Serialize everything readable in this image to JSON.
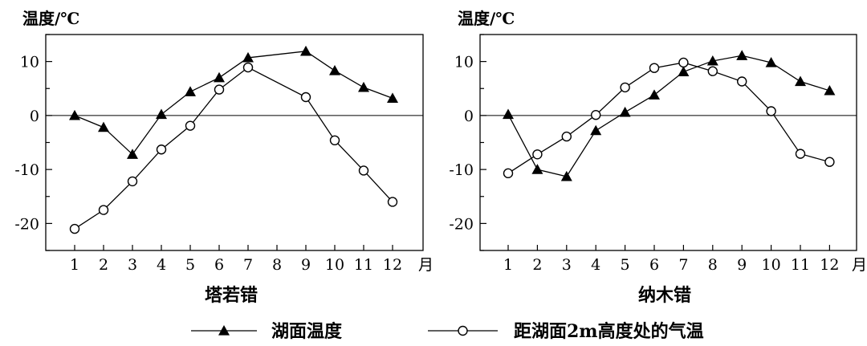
{
  "chart_data": [
    {
      "type": "line",
      "title": "塔若错",
      "ylabel": "温度/℃",
      "xlabel": "月",
      "ylim": [
        -25,
        15
      ],
      "yticks": [
        10,
        0,
        -10,
        -20
      ],
      "categories": [
        "1",
        "2",
        "3",
        "4",
        "5",
        "6",
        "7",
        "8",
        "9",
        "10",
        "11",
        "12"
      ],
      "series": [
        {
          "name": "湖面温度",
          "marker": "filled-triangle",
          "x": [
            1,
            2,
            3,
            4,
            5,
            6,
            7,
            9,
            10,
            11,
            12
          ],
          "values": [
            0,
            -2.2,
            -7.2,
            0.2,
            4.4,
            7,
            10.7,
            11.9,
            8.3,
            5.2,
            3.2
          ]
        },
        {
          "name": "距湖面2m高度处的气温",
          "marker": "open-circle",
          "x": [
            1,
            2,
            3,
            4,
            5,
            6,
            7,
            9,
            10,
            11,
            12
          ],
          "values": [
            -21,
            -17.5,
            -12.2,
            -6.3,
            -1.9,
            4.8,
            8.9,
            3.4,
            -4.6,
            -10.2,
            -16
          ]
        }
      ]
    },
    {
      "type": "line",
      "title": "纳木错",
      "ylabel": "温度/℃",
      "xlabel": "月",
      "ylim": [
        -25,
        15
      ],
      "yticks": [
        10,
        0,
        -10,
        -20
      ],
      "categories": [
        "1",
        "2",
        "3",
        "4",
        "5",
        "6",
        "7",
        "8",
        "9",
        "10",
        "11",
        "12"
      ],
      "series": [
        {
          "name": "湖面温度",
          "marker": "filled-triangle",
          "x": [
            1,
            2,
            3,
            4,
            5,
            6,
            7,
            8,
            9,
            10,
            11,
            12
          ],
          "values": [
            0.2,
            -10,
            -11.3,
            -2.8,
            0.6,
            3.8,
            8.1,
            10.1,
            11.1,
            9.8,
            6.3,
            4.6
          ]
        },
        {
          "name": "距湖面2m高度处的气温",
          "marker": "open-circle",
          "x": [
            1,
            2,
            3,
            4,
            5,
            6,
            7,
            8,
            9,
            10,
            11,
            12
          ],
          "values": [
            -10.7,
            -7.2,
            -3.9,
            0.1,
            5.2,
            8.8,
            9.8,
            8.2,
            6.3,
            0.8,
            -7.1,
            -8.6
          ]
        }
      ]
    }
  ],
  "legend": {
    "items": [
      {
        "label": "湖面温度",
        "marker": "filled-triangle"
      },
      {
        "label": "距湖面2m高度处的气温",
        "marker": "open-circle"
      }
    ]
  }
}
